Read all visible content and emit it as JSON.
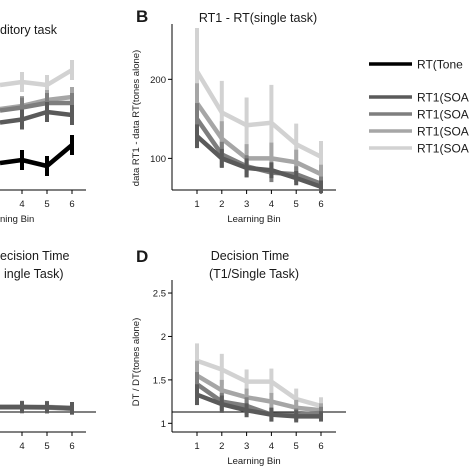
{
  "colors": {
    "rt_tone": "#000000",
    "soa_1": "#5a5a5a",
    "soa_2": "#7e7e7e",
    "soa_3": "#a6a6a6",
    "soa_4": "#d2d2d2",
    "axis": "#000000"
  },
  "panels": {
    "a": {
      "title": "ditory task",
      "xlabel": "ning Bin"
    },
    "b": {
      "letter": "B",
      "title": "RT1 - RT(single task)",
      "ylabel": "data RT1 - data RT(tones alone)",
      "xlabel": "Learning Bin"
    },
    "c": {
      "title_line1": "ecision Time",
      "title_line2": "ingle Task)"
    },
    "d": {
      "letter": "D",
      "title_line1": "Decision Time",
      "title_line2": "(T1/Single Task)",
      "ylabel": "DT / DT(tones alone)",
      "xlabel": "Learning Bin"
    }
  },
  "legend": {
    "items": [
      "RT(Tone",
      "RT1(SOA",
      "RT1(SOA",
      "RT1(SOA",
      "RT1(SOA"
    ]
  },
  "chart_data": [
    {
      "id": "panel-a",
      "type": "line",
      "title": "ditory task",
      "xlabel": "ning Bin",
      "x": [
        4,
        5,
        6
      ],
      "categories_visible": [
        "4",
        "5",
        "6"
      ],
      "series": [
        {
          "color": "#000000",
          "values_rel": [
            0.2,
            0.16,
            0.3
          ]
        },
        {
          "color": "#5a5a5a",
          "values_rel": [
            0.47,
            0.52,
            0.5
          ]
        },
        {
          "color": "#7e7e7e",
          "values_rel": [
            0.55,
            0.58,
            0.58
          ]
        },
        {
          "color": "#a6a6a6",
          "values_rel": [
            0.56,
            0.6,
            0.62
          ]
        },
        {
          "color": "#d2d2d2",
          "values_rel": [
            0.72,
            0.7,
            0.8
          ]
        }
      ]
    },
    {
      "id": "panel-b",
      "type": "line",
      "title": "RT1 - RT(single task)",
      "xlabel": "Learning Bin",
      "ylabel": "data RT1 - data RT(tones alone)",
      "x": [
        1,
        2,
        3,
        4,
        5,
        6
      ],
      "yticks": [
        100,
        200
      ],
      "ylim": [
        60,
        270
      ],
      "series": [
        {
          "color": "#5a5a5a",
          "values": [
            128,
            100,
            88,
            85,
            75,
            64
          ],
          "err": [
            15,
            12,
            12,
            10,
            9,
            8
          ]
        },
        {
          "color": "#7e7e7e",
          "values": [
            150,
            105,
            90,
            82,
            80,
            68
          ],
          "err": [
            20,
            16,
            14,
            12,
            10,
            9
          ]
        },
        {
          "color": "#a6a6a6",
          "values": [
            170,
            125,
            100,
            100,
            95,
            80
          ],
          "err": [
            25,
            22,
            18,
            20,
            16,
            12
          ]
        },
        {
          "color": "#d2d2d2",
          "values": [
            210,
            158,
            142,
            145,
            118,
            102
          ],
          "err": [
            55,
            40,
            35,
            48,
            26,
            20
          ]
        }
      ]
    },
    {
      "id": "panel-c",
      "type": "line",
      "title": "ecision Time ingle Task)",
      "xlabel": "",
      "x": [
        4,
        5,
        6
      ],
      "categories_visible": [
        "4",
        "5",
        "6"
      ],
      "series": [
        {
          "color": "#5a5a5a",
          "values": [
            1.12,
            1.12,
            1.1
          ]
        },
        {
          "color": "#7e7e7e",
          "values": [
            1.13,
            1.12,
            1.08
          ]
        },
        {
          "color": "#a6a6a6",
          "values": [
            1.12,
            1.11,
            1.08
          ]
        },
        {
          "color": "#d2d2d2",
          "values": [
            1.12,
            1.13,
            1.1
          ]
        }
      ]
    },
    {
      "id": "panel-d",
      "type": "line",
      "title": "Decision Time (T1/Single Task)",
      "xlabel": "Learning Bin",
      "ylabel": "DT / DT(tones alone)",
      "x": [
        1,
        2,
        3,
        4,
        5,
        6
      ],
      "yticks": [
        1,
        1.5,
        2,
        2.5
      ],
      "ylim": [
        0.9,
        2.65
      ],
      "series": [
        {
          "color": "#5a5a5a",
          "values": [
            1.33,
            1.22,
            1.15,
            1.1,
            1.08,
            1.08
          ],
          "err": [
            0.12,
            0.1,
            0.08,
            0.08,
            0.07,
            0.06
          ]
        },
        {
          "color": "#7e7e7e",
          "values": [
            1.45,
            1.25,
            1.2,
            1.1,
            1.1,
            1.12
          ],
          "err": [
            0.14,
            0.1,
            0.1,
            0.08,
            0.07,
            0.07
          ]
        },
        {
          "color": "#a6a6a6",
          "values": [
            1.55,
            1.38,
            1.3,
            1.25,
            1.18,
            1.15
          ],
          "err": [
            0.17,
            0.12,
            0.1,
            0.1,
            0.09,
            0.08
          ]
        },
        {
          "color": "#d2d2d2",
          "values": [
            1.72,
            1.62,
            1.48,
            1.48,
            1.28,
            1.2
          ],
          "err": [
            0.2,
            0.18,
            0.14,
            0.15,
            0.12,
            0.1
          ]
        }
      ],
      "reference_line": 1
    }
  ]
}
